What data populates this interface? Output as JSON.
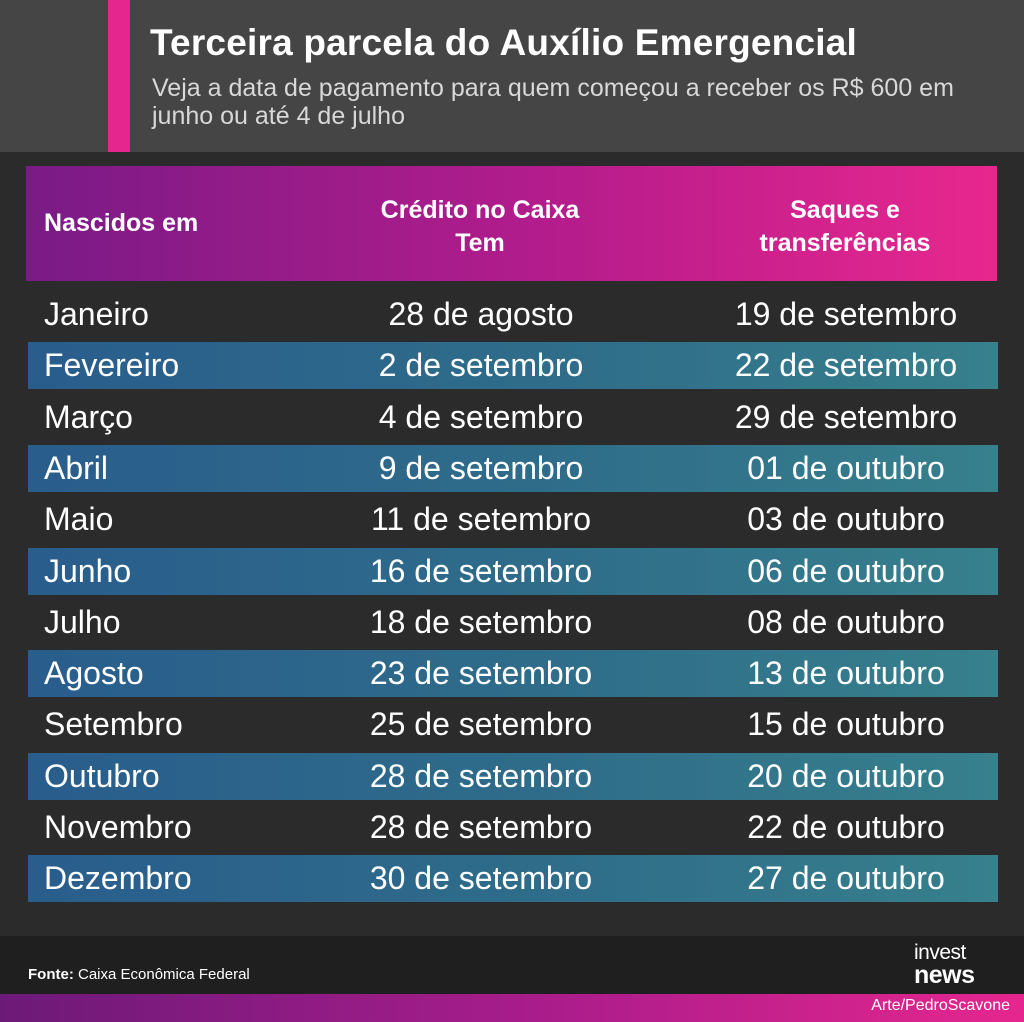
{
  "header": {
    "title": "Terceira parcela do Auxílio Emergencial",
    "subtitle": "Veja a data de pagamento para quem começou a receber os R$ 600 em junho ou até 4 de julho"
  },
  "table": {
    "columns": [
      "Nascidos em",
      "Crédito no Caixa Tem",
      "Saques e transferências"
    ],
    "rows": [
      {
        "month": "Janeiro",
        "credit": "28 de agosto",
        "withdraw": "19 de setembro"
      },
      {
        "month": "Fevereiro",
        "credit": "2 de setembro",
        "withdraw": "22 de setembro"
      },
      {
        "month": "Março",
        "credit": "4 de setembro",
        "withdraw": "29 de setembro"
      },
      {
        "month": "Abril",
        "credit": "9 de setembro",
        "withdraw": "01 de outubro"
      },
      {
        "month": "Maio",
        "credit": "11 de setembro",
        "withdraw": "03 de outubro"
      },
      {
        "month": "Junho",
        "credit": "16 de setembro",
        "withdraw": "06 de outubro"
      },
      {
        "month": "Julho",
        "credit": "18 de setembro",
        "withdraw": "08 de outubro"
      },
      {
        "month": "Agosto",
        "credit": "23 de setembro",
        "withdraw": "13 de outubro"
      },
      {
        "month": "Setembro",
        "credit": "25 de setembro",
        "withdraw": "15 de outubro"
      },
      {
        "month": "Outubro",
        "credit": "28 de setembro",
        "withdraw": "20 de outubro"
      },
      {
        "month": "Novembro",
        "credit": "28 de setembro",
        "withdraw": "22 de outubro"
      },
      {
        "month": "Dezembro",
        "credit": "30 de setembro",
        "withdraw": "27 de outubro"
      }
    ]
  },
  "footer": {
    "source_label": "Fonte:",
    "source_text": "Caixa Econômica Federal",
    "logo_top": "invest",
    "logo_bottom": "news",
    "art_credit": "Arte/PedroScavone"
  },
  "colors": {
    "accent": "#e5268e",
    "header_bg": "#454545",
    "page_bg": "#2b2b2b",
    "stripe": "#2f6d8a"
  }
}
